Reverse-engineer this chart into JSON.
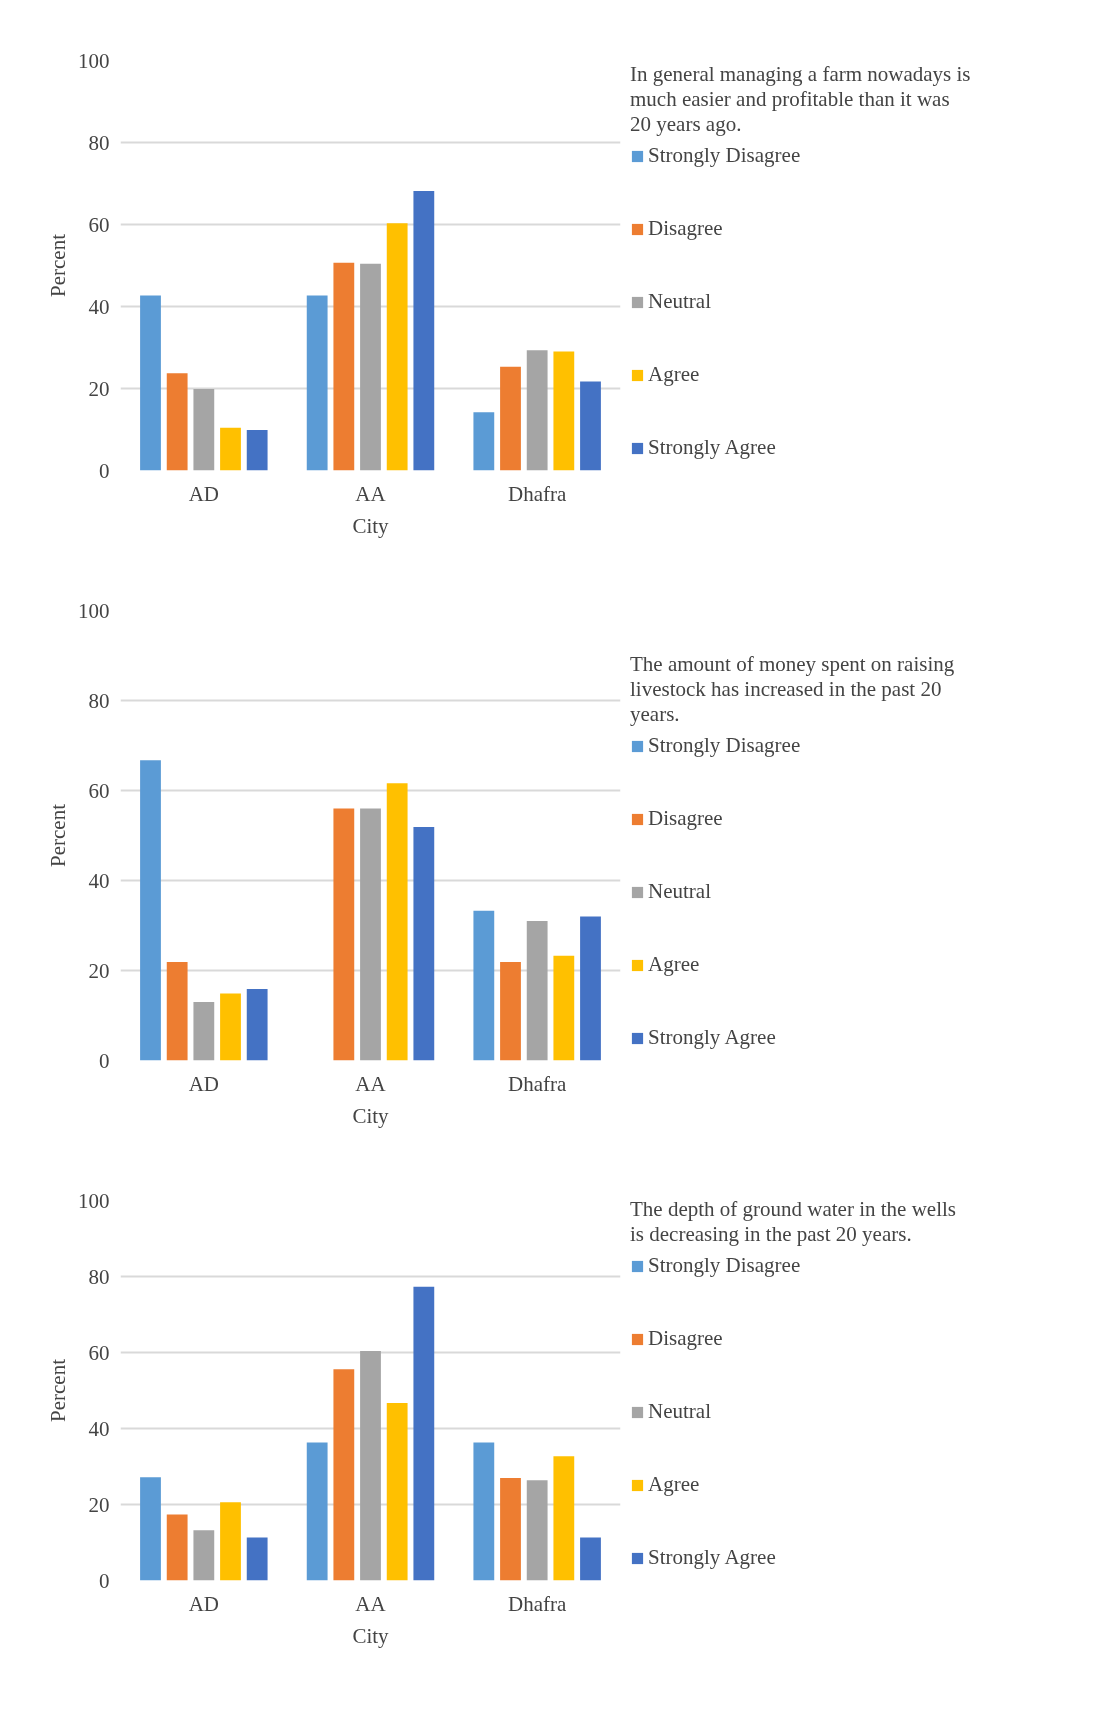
{
  "chart_data": [
    {
      "type": "bar",
      "title": "In general managing a farm nowadays is much easier and profitable than it was 20 years ago.",
      "xlabel": "City",
      "ylabel": "Percent",
      "categories": [
        "AD",
        "AA",
        "Dhafra"
      ],
      "ylim": [
        0,
        100
      ],
      "yticks": [
        0,
        20,
        40,
        60,
        80,
        100
      ],
      "grid": "y",
      "legend": "right",
      "series": [
        {
          "name": "Strongly Disagree",
          "color": "#5b9bd5",
          "values": [
            42.7,
            42.7,
            14.2
          ]
        },
        {
          "name": "Disagree",
          "color": "#ed7d31",
          "values": [
            23.7,
            50.7,
            25.3
          ]
        },
        {
          "name": "Neutral",
          "color": "#a5a5a5",
          "values": [
            19.9,
            50.4,
            29.3
          ]
        },
        {
          "name": "Agree",
          "color": "#ffc000",
          "values": [
            10.4,
            60.3,
            29.0
          ]
        },
        {
          "name": "Strongly Agree",
          "color": "#4472c4",
          "values": [
            9.9,
            68.2,
            21.7
          ]
        }
      ]
    },
    {
      "type": "bar",
      "title": "The amount of money spent on raising livestock has increased in the past 20 years.",
      "xlabel": "City",
      "ylabel": "Percent",
      "categories": [
        "AD",
        "AA",
        "Dhafra"
      ],
      "ylim": [
        0,
        100
      ],
      "yticks": [
        0,
        20,
        40,
        60,
        80,
        100
      ],
      "grid": "y",
      "legend": "right",
      "series": [
        {
          "name": "Strongly Disagree",
          "color": "#5b9bd5",
          "values": [
            66.7,
            0,
            33.3
          ]
        },
        {
          "name": "Disagree",
          "color": "#ed7d31",
          "values": [
            21.9,
            56.0,
            21.9
          ]
        },
        {
          "name": "Neutral",
          "color": "#a5a5a5",
          "values": [
            13.0,
            56.0,
            31.0
          ]
        },
        {
          "name": "Agree",
          "color": "#ffc000",
          "values": [
            14.9,
            61.6,
            23.3
          ]
        },
        {
          "name": "Strongly Agree",
          "color": "#4472c4",
          "values": [
            15.9,
            51.9,
            32.0
          ]
        }
      ]
    },
    {
      "type": "bar",
      "title": "The depth of ground water in the wells is decreasing in the past 20 years.",
      "xlabel": "City",
      "ylabel": "Percent",
      "categories": [
        "AD",
        "AA",
        "Dhafra"
      ],
      "ylim": [
        0,
        100
      ],
      "yticks": [
        0,
        20,
        40,
        60,
        80,
        100
      ],
      "grid": "y",
      "legend": "right",
      "series": [
        {
          "name": "Strongly Disagree",
          "color": "#5b9bd5",
          "values": [
            27.2,
            36.3,
            36.3
          ]
        },
        {
          "name": "Disagree",
          "color": "#ed7d31",
          "values": [
            17.4,
            55.6,
            27.0
          ]
        },
        {
          "name": "Neutral",
          "color": "#a5a5a5",
          "values": [
            13.2,
            60.4,
            26.4
          ]
        },
        {
          "name": "Agree",
          "color": "#ffc000",
          "values": [
            20.6,
            46.7,
            32.7
          ]
        },
        {
          "name": "Strongly Agree",
          "color": "#4472c4",
          "values": [
            11.3,
            77.3,
            11.3
          ]
        }
      ]
    }
  ]
}
